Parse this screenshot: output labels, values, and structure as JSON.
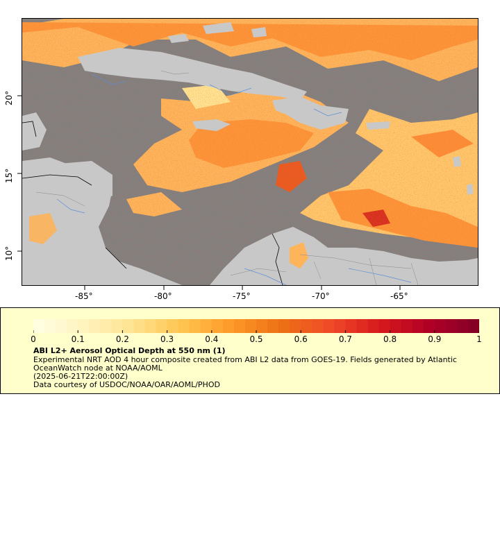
{
  "map": {
    "x_axis": {
      "ticks": [
        "-85°",
        "-80°",
        "-75°",
        "-70°",
        "-65°"
      ],
      "values": [
        -85,
        -80,
        -75,
        -70,
        -65
      ],
      "range": [
        -88.9,
        -60.0
      ]
    },
    "y_axis": {
      "ticks": [
        "10°",
        "15°",
        "20°"
      ],
      "values": [
        10,
        15,
        20
      ],
      "range": [
        8.1,
        25.3
      ]
    },
    "colors": {
      "no_data": "#808080",
      "land": "#c8c8c8",
      "rivers": "#5b8fd6",
      "borders": "#000000",
      "admin_lines": "#8a8a8a"
    }
  },
  "legend": {
    "scale_labels": [
      "0",
      "0.1",
      "0.2",
      "0.3",
      "0.4",
      "0.5",
      "0.6",
      "0.7",
      "0.8",
      "0.9",
      "1"
    ],
    "scale_min": 0,
    "scale_max": 1,
    "color_stops": [
      "#ffffe5",
      "#fff3bf",
      "#fee391",
      "#fec44f",
      "#fe9929",
      "#ec7014",
      "#f04a28",
      "#d7191c",
      "#b10026",
      "#800026"
    ],
    "title": "ABI L2+ Aerosol Optical Depth at 550 nm (1)",
    "description_line1": "Experimental NRT AOD 4 hour composite created from ABI L2 data from GOES-19. Fields generated by Atlantic",
    "description_line2": "OceanWatch node at NOAA/AOML",
    "timestamp": "(2025-06-21T22:00:00Z)",
    "credit": "Data courtesy of USDOC/NOAA/OAR/AOML/PHOD"
  }
}
